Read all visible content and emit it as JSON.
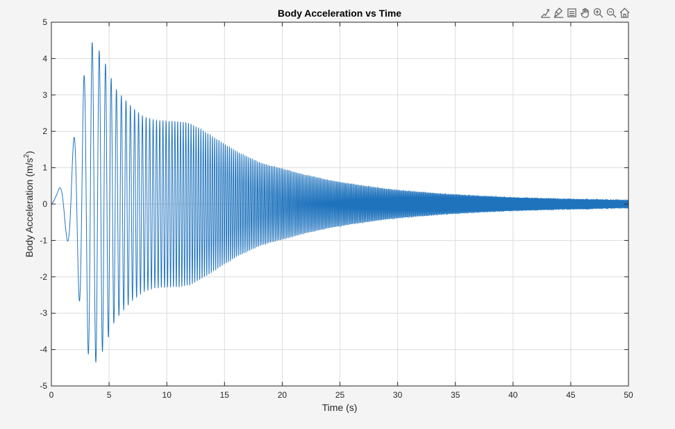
{
  "toolbar": {
    "icons": [
      "data-tips-icon",
      "brush-icon",
      "legend-icon",
      "pan-icon",
      "zoom-in-icon",
      "zoom-out-icon",
      "home-icon"
    ]
  },
  "colors": {
    "series": "#1f73bd",
    "grid": "#dcdcdc",
    "axis": "#262626",
    "plot_background": "#ffffff",
    "figure_background": "#f4f4f4"
  },
  "chart_data": {
    "type": "line",
    "title": "Body Acceleration vs Time",
    "xlabel": "Time (s)",
    "ylabel_main": "Body Acceleration (m/s",
    "ylabel_sup": "2",
    "ylabel_close": ")",
    "xlim": [
      0,
      50
    ],
    "ylim": [
      -5,
      5
    ],
    "xticks": [
      0,
      5,
      10,
      15,
      20,
      25,
      30,
      35,
      40,
      45,
      50
    ],
    "yticks": [
      5,
      4,
      3,
      2,
      1,
      0,
      -1,
      -2,
      -3,
      -4,
      -5
    ],
    "grid": true,
    "series": [
      {
        "signal": "chirp",
        "frequency_start_hz": 0.3,
        "frequency_rate_hz_per_s": 0.35,
        "envelope": {
          "t": [
            0,
            0.5,
            1.0,
            1.5,
            2.0,
            2.5,
            3.0,
            3.5,
            4.0,
            4.5,
            5.0,
            5.5,
            6.0,
            7.0,
            8.0,
            9.0,
            10.0,
            11.0,
            12.0,
            13.0,
            14.0,
            15.0,
            16.0,
            17.0,
            18.0,
            19.0,
            20.0,
            22.0,
            24.0,
            26.0,
            28.0,
            30.0,
            32.0,
            34.0,
            36.0,
            38.0,
            40.0,
            42.0,
            44.0,
            46.0,
            48.0,
            50.0
          ],
          "amplitude": [
            0.15,
            0.3,
            0.7,
            1.1,
            1.9,
            2.8,
            3.9,
            4.45,
            4.3,
            4.0,
            3.6,
            3.2,
            3.0,
            2.65,
            2.4,
            2.3,
            2.28,
            2.27,
            2.22,
            2.05,
            1.85,
            1.65,
            1.45,
            1.3,
            1.15,
            1.05,
            0.97,
            0.8,
            0.66,
            0.55,
            0.46,
            0.38,
            0.33,
            0.28,
            0.24,
            0.21,
            0.18,
            0.16,
            0.14,
            0.13,
            0.115,
            0.1
          ]
        }
      }
    ]
  }
}
